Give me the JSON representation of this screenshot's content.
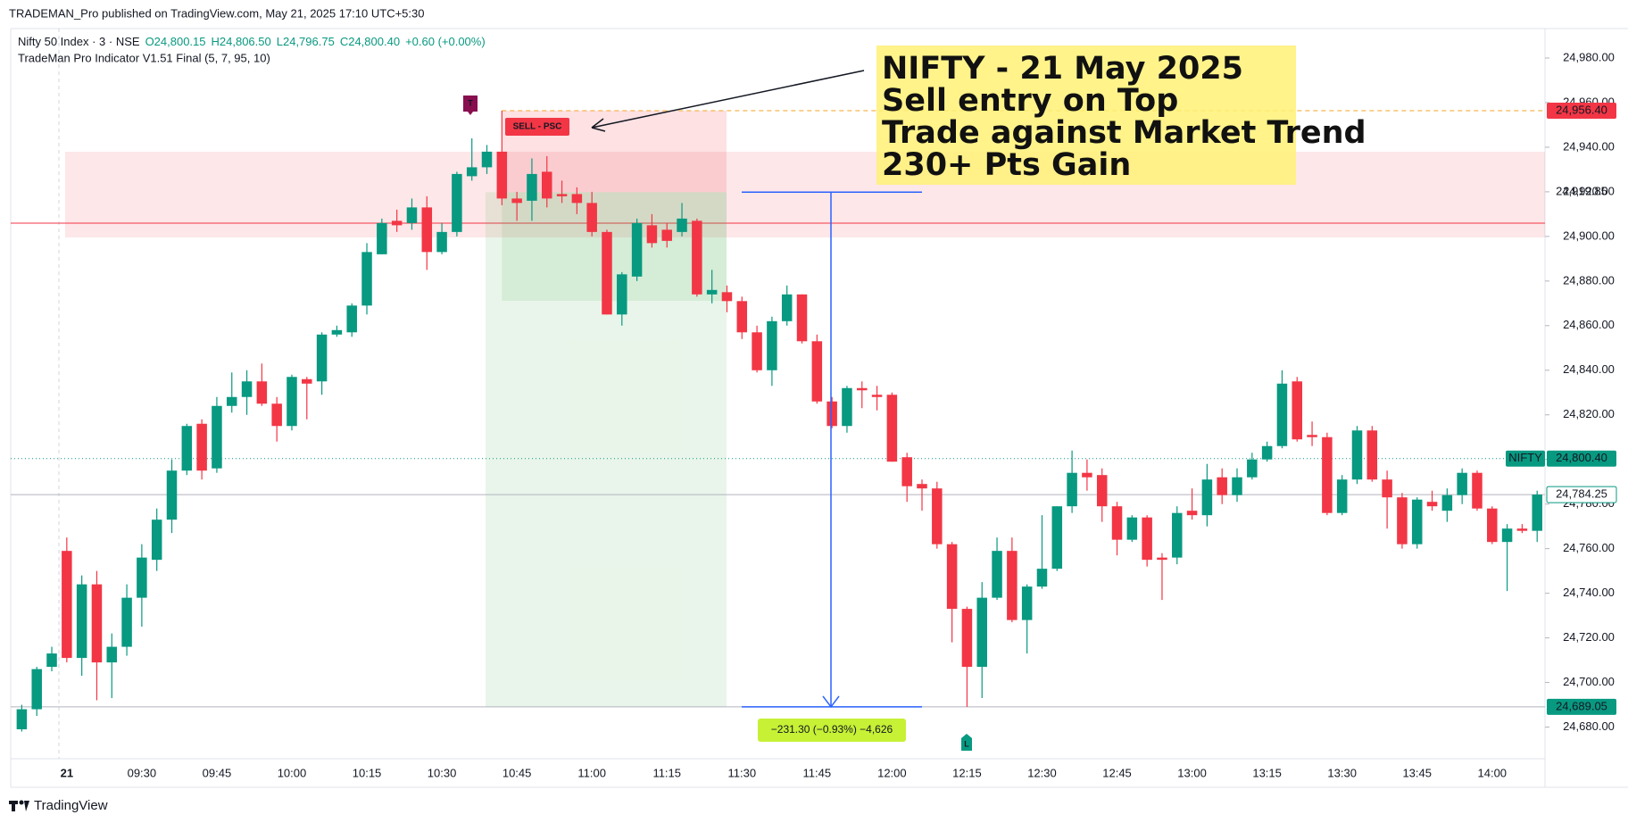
{
  "header": "TRADEMAN_Pro published on TradingView.com, May 21, 2025 17:10 UTC+5:30",
  "footer": "TradingView",
  "chart_data": {
    "type": "candlestick",
    "legend": {
      "symbol": "Nifty 50 Index · 3 · NSE",
      "open": "O24,800.15",
      "high": "H24,806.50",
      "low": "L24,796.75",
      "close": "C24,800.40",
      "change": "+0.60 (+0.00%)",
      "indicator": "TradeMan Pro Indicator V1.51 Final (5, 7, 95, 10)"
    },
    "categories": [
      null,
      null,
      null,
      "21",
      null,
      null,
      null,
      null,
      "09:30",
      null,
      null,
      null,
      null,
      "09:45",
      null,
      null,
      null,
      null,
      "10:00",
      null,
      null,
      null,
      null,
      "10:15",
      null,
      null,
      null,
      null,
      "10:30",
      null,
      null,
      null,
      null,
      "10:45",
      null,
      null,
      null,
      null,
      "11:00",
      null,
      null,
      null,
      null,
      "11:15",
      null,
      null,
      null,
      null,
      "11:30",
      null,
      null,
      null,
      null,
      "11:45",
      null,
      null,
      null,
      null,
      "12:00",
      null,
      null,
      null,
      null,
      "12:15",
      null,
      null,
      null,
      null,
      "12:30",
      null,
      null,
      null,
      null,
      "12:45",
      null,
      null,
      null,
      null,
      "13:00",
      null,
      null,
      null,
      null,
      "13:15",
      null,
      null,
      null,
      null,
      "13:30",
      null,
      null,
      null,
      null,
      "13:45",
      null,
      null,
      null,
      null,
      "14:00",
      null,
      null,
      null
    ],
    "open": [
      24679,
      24688,
      24707,
      24759,
      24711,
      24744,
      24709,
      24716,
      24738,
      24755,
      24773,
      24795,
      24816,
      24796,
      24824,
      24828,
      24835,
      24825,
      24815,
      24836,
      24835,
      24856,
      24857,
      24869,
      24892,
      24907,
      24906,
      24913,
      24893,
      24902,
      24927,
      24931,
      24938,
      24917,
      24916,
      24929,
      24919,
      24919,
      24915,
      24902,
      24865,
      24882,
      24905,
      24903,
      24902,
      24907,
      24874,
      24875,
      24871,
      24857,
      24840,
      24862,
      24874,
      24853,
      24826,
      24815,
      24832,
      24829,
      24829,
      24801,
      24789,
      24787,
      24762,
      24733,
      24707,
      24738,
      24759,
      24728,
      24743,
      24751,
      24779,
      24794,
      24793,
      24779,
      24764,
      24774,
      24756,
      24756,
      24777,
      24775,
      24792,
      24784,
      24792,
      24800,
      24806,
      24835,
      24811,
      24810,
      24776,
      24791,
      24813,
      24791,
      24783,
      24762,
      24781,
      24777,
      24784,
      24794,
      24778,
      24763,
      24769,
      24768
    ],
    "high": [
      24690,
      24707,
      24716,
      24765,
      24748,
      24750,
      24722,
      24744,
      24762,
      24778,
      24800,
      24816,
      24818,
      24828,
      24839,
      24840,
      24843,
      24828,
      24838,
      24837,
      24857,
      24860,
      24870,
      24897,
      24908,
      24912,
      24917,
      24918,
      24906,
      24929,
      24944,
      24941,
      24956.4,
      24920,
      24935,
      24936,
      24925,
      24922,
      24920,
      24903,
      24884,
      24908,
      24910,
      24906,
      24915,
      24908,
      24885,
      24878,
      24873,
      24860,
      24864,
      24878,
      24874,
      24856,
      24828,
      24833,
      24835,
      24833,
      24830,
      24803,
      24791,
      24790,
      24763,
      24734,
      24745,
      24765,
      24765,
      24744,
      24775,
      24779,
      24804,
      24800,
      24796,
      24781,
      24775,
      24775,
      24758,
      24779,
      24787,
      24798,
      24796,
      24796,
      24803,
      24808,
      24840,
      24837,
      24817,
      24812,
      24793,
      24815,
      24815,
      24795,
      24785,
      24783,
      24786,
      24787,
      24796,
      24795,
      24779,
      24771,
      24771,
      24786
    ],
    "low": [
      24678,
      24685,
      24705,
      24709,
      24703,
      24692,
      24693,
      24712,
      24725,
      24750,
      24767,
      24793,
      24791,
      24794,
      24821,
      24820,
      24824,
      24808,
      24813,
      24818,
      24829,
      24855,
      24855,
      24865,
      24892,
      24902,
      24903,
      24885,
      24892,
      24900,
      24925,
      24928,
      24914,
      24907,
      24907,
      24913,
      24915,
      24910,
      24900,
      24865,
      24860,
      24880,
      24895,
      24895,
      24900,
      24873,
      24870,
      24866,
      24854,
      24839,
      24833,
      24860,
      24852,
      24825,
      24814,
      24812,
      24823,
      24822,
      24799,
      24781,
      24777,
      24760,
      24718,
      24689.05,
      24693,
      24737,
      24727,
      24713,
      24742,
      24750,
      24776,
      24786,
      24772,
      24757,
      24763,
      24752,
      24737,
      24753,
      24773,
      24770,
      24780,
      24781,
      24791,
      24799,
      24805,
      24808,
      24806,
      24775,
      24775,
      24789,
      24790,
      24769,
      24760,
      24760,
      24777,
      24772,
      24780,
      24777,
      24762,
      24741,
      24767,
      24763
    ],
    "close": [
      24688,
      24706,
      24713,
      24711,
      24744,
      24709,
      24716,
      24738,
      24756,
      24773,
      24795,
      24815,
      24795,
      24824,
      24828,
      24835,
      24825,
      24815,
      24837,
      24834,
      24856,
      24858,
      24869,
      24893,
      24906,
      24905,
      24913,
      24893,
      24902,
      24928,
      24931,
      24938,
      24917,
      24915,
      24928,
      24917,
      24918,
      24915,
      24902,
      24865,
      24883,
      24906,
      24897,
      24898,
      24908,
      24874,
      24876,
      24871,
      24857,
      24840,
      24862,
      24874,
      24853,
      24826,
      24815,
      24832,
      24831,
      24828,
      24799,
      24788,
      24787,
      24762,
      24733,
      24707,
      24738,
      24759,
      24728,
      24743,
      24751,
      24779,
      24794,
      24792,
      24779,
      24764,
      24774,
      24755,
      24755,
      24776,
      24775,
      24791,
      24784,
      24792,
      24800,
      24806,
      24834,
      24809,
      24810,
      24776,
      24791,
      24813,
      24791,
      24783,
      24762,
      24782,
      24779,
      24784,
      24794,
      24778,
      24763,
      24769,
      24768,
      24784.25
    ],
    "up_color": "#089981",
    "down_color": "#f23645",
    "ylim": [
      24653,
      24992
    ],
    "yticks": [
      {
        "value": 24680,
        "label": "24,680.00"
      },
      {
        "value": 24700,
        "label": "24,700.00"
      },
      {
        "value": 24720,
        "label": "24,720.00"
      },
      {
        "value": 24740,
        "label": "24,740.00"
      },
      {
        "value": 24760,
        "label": "24,760.00"
      },
      {
        "value": 24780,
        "label": "24,780.00"
      },
      {
        "value": 24800,
        "label": "24,800.00"
      },
      {
        "value": 24820,
        "label": "24,820.00"
      },
      {
        "value": 24840,
        "label": "24,840.00"
      },
      {
        "value": 24860,
        "label": "24,860.00"
      },
      {
        "value": 24880,
        "label": "24,880.00"
      },
      {
        "value": 24900,
        "label": "24,900.00"
      },
      {
        "value": 24920,
        "label": "24,920.00"
      },
      {
        "value": 24940,
        "label": "24,940.00"
      },
      {
        "value": 24960,
        "label": "24,960.00"
      },
      {
        "value": 24980,
        "label": "24,980.00"
      }
    ],
    "price_tags": [
      {
        "value": 24956.4,
        "label": "24,956.40",
        "color": "#f23645",
        "line_color": "#f5a623",
        "line_style": "dashed"
      },
      {
        "value": 24919.85,
        "label": "24,919.85"
      },
      {
        "value": 24800.4,
        "label": "24,800.40",
        "name": "NIFTY",
        "color": "#089981",
        "line_color": "#089981",
        "line_style": "dotted"
      },
      {
        "value": 24784.25,
        "label": "24,784.25",
        "border": "#089981",
        "line_color": "#b2b5be",
        "line_style": "solid"
      },
      {
        "value": 24689.05,
        "label": "24,689.05",
        "color": "#089981",
        "line_color": "#b2b5be",
        "line_style": "solid"
      }
    ],
    "callout": [
      "NIFTY - 21 May 2025",
      "Sell entry on Top",
      "Trade against Market Trend",
      "230+ Pts Gain"
    ],
    "markers": {
      "top": "T",
      "sell": "SELL - PSC",
      "low": "L"
    },
    "measure_label": "−231.30 (−0.93%) −4,626"
  }
}
